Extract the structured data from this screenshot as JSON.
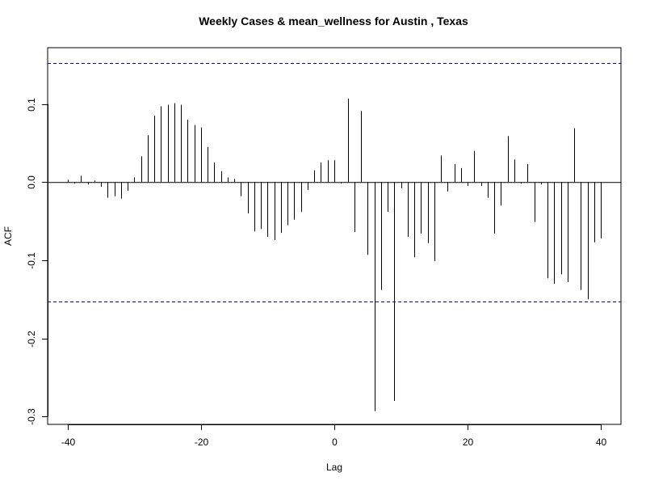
{
  "chart_data": {
    "type": "bar",
    "title": "Weekly Cases & mean_wellness for Austin , Texas",
    "xlabel": "Lag",
    "ylabel": "ACF",
    "xlim": [
      -43,
      43
    ],
    "ylim": [
      -0.31,
      0.172
    ],
    "x_ticks": [
      -40,
      -20,
      0,
      20,
      40
    ],
    "x_tick_labels": [
      "-40",
      "-20",
      "0",
      "20",
      "40"
    ],
    "y_ticks": [
      -0.3,
      -0.2,
      -0.1,
      0.0,
      0.1
    ],
    "y_tick_labels": [
      "-0.3",
      "-0.2",
      "-0.1",
      "0.0",
      "0.1"
    ],
    "confidence_bounds": [
      0.152,
      -0.153
    ],
    "confidence_color": "#0000cc",
    "bar_color": "#000000",
    "grid": false,
    "x": [
      -40,
      -39,
      -38,
      -37,
      -36,
      -35,
      -34,
      -33,
      -32,
      -31,
      -30,
      -29,
      -28,
      -27,
      -26,
      -25,
      -24,
      -23,
      -22,
      -21,
      -20,
      -19,
      -18,
      -17,
      -16,
      -15,
      -14,
      -13,
      -12,
      -11,
      -10,
      -9,
      -8,
      -7,
      -6,
      -5,
      -4,
      -3,
      -2,
      -1,
      0,
      1,
      2,
      3,
      4,
      5,
      6,
      7,
      8,
      9,
      10,
      11,
      12,
      13,
      14,
      15,
      16,
      17,
      18,
      19,
      20,
      21,
      22,
      23,
      24,
      25,
      26,
      27,
      28,
      29,
      30,
      31,
      32,
      33,
      34,
      35,
      36,
      37,
      38,
      39,
      40
    ],
    "values": [
      0.003,
      -0.002,
      0.008,
      -0.003,
      0.002,
      -0.006,
      -0.02,
      -0.018,
      -0.021,
      -0.011,
      0.006,
      0.033,
      0.06,
      0.085,
      0.097,
      0.099,
      0.101,
      0.099,
      0.08,
      0.073,
      0.07,
      0.045,
      0.025,
      0.014,
      0.006,
      0.004,
      -0.018,
      -0.04,
      -0.063,
      -0.06,
      -0.07,
      -0.074,
      -0.065,
      -0.055,
      -0.048,
      -0.038,
      -0.01,
      0.015,
      0.025,
      0.028,
      0.028,
      -0.002,
      0.107,
      -0.064,
      0.091,
      -0.093,
      -0.293,
      -0.138,
      -0.038,
      -0.28,
      -0.008,
      -0.07,
      -0.096,
      -0.066,
      -0.078,
      -0.101,
      0.034,
      -0.012,
      0.023,
      0.018,
      -0.005,
      0.04,
      -0.005,
      -0.02,
      -0.066,
      -0.03,
      0.059,
      0.029,
      -0.002,
      0.023,
      -0.051,
      -0.003,
      -0.123,
      -0.13,
      -0.118,
      -0.128,
      0.069,
      -0.138,
      -0.15,
      -0.077,
      -0.072
    ]
  }
}
